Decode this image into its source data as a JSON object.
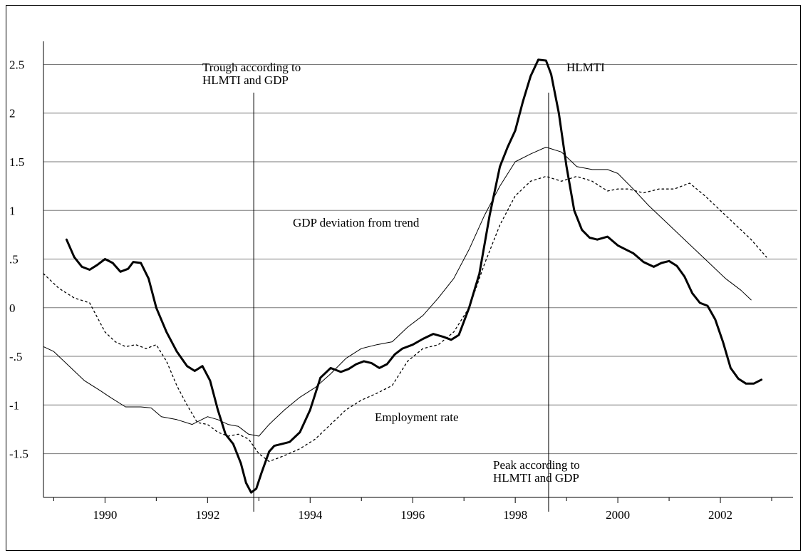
{
  "chart_data": {
    "type": "line",
    "title": "",
    "xlabel": "",
    "ylabel": "",
    "xlim": [
      1988.8,
      2003.5
    ],
    "ylim": [
      -1.95,
      2.65
    ],
    "grid": {
      "horizontal": true,
      "vertical": false
    },
    "x_ticks": [
      1990,
      1992,
      1994,
      1996,
      1998,
      2000,
      2002
    ],
    "x_tick_labels": [
      "1990",
      "1992",
      "1994",
      "1996",
      "1998",
      "2000",
      "2002"
    ],
    "y_ticks": [
      2.5,
      2,
      1.5,
      1,
      0.5,
      0,
      -0.5,
      -1,
      -1.5
    ],
    "y_tick_labels": [
      "2.5",
      "2",
      "1.5",
      "1",
      ".5",
      "0",
      "-.5",
      "-1",
      "-1.5"
    ],
    "reference_lines": [
      {
        "x": 1992.9,
        "label": "Trough according to\nHLMTI and GDP"
      },
      {
        "x": 1998.65,
        "label": "Peak according to\nHLMTI and GDP"
      }
    ],
    "annotations": [
      {
        "text": "HLMTI",
        "series": "HLMTI"
      },
      {
        "text": "GDP deviation from trend",
        "series": "GDP deviation from trend"
      },
      {
        "text": "Employment rate",
        "series": "Employment rate"
      }
    ],
    "series": [
      {
        "name": "HLMTI",
        "style": "thick",
        "x": [
          1989.25,
          1989.4,
          1989.55,
          1989.7,
          1989.85,
          1990.0,
          1990.15,
          1990.3,
          1990.45,
          1990.55,
          1990.7,
          1990.85,
          1991.0,
          1991.2,
          1991.4,
          1991.6,
          1991.75,
          1991.9,
          1992.05,
          1992.2,
          1992.35,
          1992.5,
          1992.65,
          1992.75,
          1992.85,
          1992.95,
          1993.05,
          1993.2,
          1993.3,
          1993.45,
          1993.6,
          1993.8,
          1994.0,
          1994.2,
          1994.4,
          1994.6,
          1994.75,
          1994.9,
          1995.05,
          1995.2,
          1995.35,
          1995.5,
          1995.65,
          1995.8,
          1996.0,
          1996.2,
          1996.4,
          1996.6,
          1996.75,
          1996.9,
          1997.1,
          1997.3,
          1997.5,
          1997.7,
          1997.85,
          1998.0,
          1998.15,
          1998.3,
          1998.45,
          1998.6,
          1998.7,
          1998.85,
          1999.0,
          1999.15,
          1999.3,
          1999.45,
          1999.6,
          1999.8,
          2000.0,
          2000.15,
          2000.3,
          2000.5,
          2000.7,
          2000.85,
          2001.0,
          2001.15,
          2001.3,
          2001.45,
          2001.6,
          2001.75,
          2001.9,
          2002.05,
          2002.2,
          2002.35,
          2002.5,
          2002.65,
          2002.8
        ],
        "values": [
          0.7,
          0.52,
          0.42,
          0.39,
          0.44,
          0.5,
          0.46,
          0.37,
          0.4,
          0.47,
          0.46,
          0.3,
          0.0,
          -0.25,
          -0.45,
          -0.6,
          -0.65,
          -0.6,
          -0.75,
          -1.05,
          -1.3,
          -1.4,
          -1.6,
          -1.8,
          -1.9,
          -1.86,
          -1.7,
          -1.48,
          -1.42,
          -1.4,
          -1.38,
          -1.28,
          -1.05,
          -0.72,
          -0.62,
          -0.66,
          -0.63,
          -0.58,
          -0.55,
          -0.57,
          -0.62,
          -0.58,
          -0.48,
          -0.42,
          -0.38,
          -0.32,
          -0.27,
          -0.3,
          -0.33,
          -0.28,
          0.0,
          0.35,
          0.95,
          1.45,
          1.65,
          1.82,
          2.12,
          2.38,
          2.55,
          2.54,
          2.4,
          2.0,
          1.45,
          1.0,
          0.8,
          0.72,
          0.7,
          0.73,
          0.64,
          0.6,
          0.56,
          0.47,
          0.42,
          0.46,
          0.48,
          0.43,
          0.32,
          0.15,
          0.05,
          0.02,
          -0.12,
          -0.35,
          -0.62,
          -0.73,
          -0.78,
          -0.78,
          -0.74
        ]
      },
      {
        "name": "GDP deviation from trend",
        "style": "thin",
        "x": [
          1988.8,
          1989.1,
          1989.4,
          1989.7,
          1990.0,
          1990.2,
          1990.4,
          1990.6,
          1990.8,
          1991.0,
          1991.2,
          1991.4,
          1991.6,
          1991.8,
          1992.0,
          1992.2,
          1992.4,
          1992.6,
          1992.8,
          1993.0,
          1993.2,
          1993.5,
          1993.8,
          1994.1,
          1994.4,
          1994.7,
          1995.0,
          1995.3,
          1995.6,
          1995.9,
          1996.2,
          1996.5,
          1996.8,
          1997.1,
          1997.4,
          1997.7,
          1998.0,
          1998.3,
          1998.6,
          1998.9,
          1999.2,
          1999.5,
          1999.8,
          2000.0,
          2000.2,
          2000.5,
          2000.8,
          2001.1,
          2001.4,
          2001.7,
          2002.0,
          2002.3,
          2002.6,
          2002.9
        ],
        "values": [
          0.35,
          0.2,
          0.1,
          0.05,
          -0.25,
          -0.35,
          -0.4,
          -0.38,
          -0.42,
          -0.38,
          -0.55,
          -0.8,
          -1.0,
          -1.18,
          -1.2,
          -1.28,
          -1.32,
          -1.3,
          -1.35,
          -1.5,
          -1.58,
          -1.52,
          -1.45,
          -1.35,
          -1.2,
          -1.05,
          -0.95,
          -0.88,
          -0.8,
          -0.55,
          -0.42,
          -0.38,
          -0.25,
          0.0,
          0.45,
          0.85,
          1.15,
          1.3,
          1.35,
          1.3,
          1.35,
          1.3,
          1.2,
          1.22,
          1.22,
          1.18,
          1.22,
          1.22,
          1.28,
          1.15,
          1.0,
          0.85,
          0.7,
          0.52
        ]
      },
      {
        "name": "Employment rate",
        "style": "thin",
        "x": [
          1988.8,
          1989.0,
          1989.3,
          1989.6,
          1989.9,
          1990.1,
          1990.4,
          1990.7,
          1990.9,
          1991.1,
          1991.4,
          1991.7,
          1992.0,
          1992.2,
          1992.4,
          1992.6,
          1992.8,
          1993.0,
          1993.2,
          1993.5,
          1993.8,
          1994.1,
          1994.4,
          1994.7,
          1995.0,
          1995.3,
          1995.6,
          1995.9,
          1996.2,
          1996.5,
          1996.8,
          1997.1,
          1997.4,
          1997.7,
          1998.0,
          1998.3,
          1998.6,
          1998.9,
          1999.2,
          1999.5,
          1999.8,
          2000.0,
          2000.3,
          2000.6,
          2000.9,
          2001.2,
          2001.5,
          2001.8,
          2002.1,
          2002.4,
          2002.6
        ],
        "values": [
          -0.4,
          -0.45,
          -0.6,
          -0.75,
          -0.85,
          -0.92,
          -1.02,
          -1.02,
          -1.03,
          -1.12,
          -1.15,
          -1.2,
          -1.12,
          -1.15,
          -1.2,
          -1.22,
          -1.3,
          -1.32,
          -1.2,
          -1.05,
          -0.92,
          -0.82,
          -0.68,
          -0.52,
          -0.42,
          -0.38,
          -0.35,
          -0.2,
          -0.08,
          0.1,
          0.3,
          0.6,
          0.95,
          1.25,
          1.5,
          1.58,
          1.65,
          1.6,
          1.45,
          1.42,
          1.42,
          1.38,
          1.22,
          1.05,
          0.9,
          0.75,
          0.6,
          0.45,
          0.3,
          0.18,
          0.08
        ]
      }
    ]
  }
}
